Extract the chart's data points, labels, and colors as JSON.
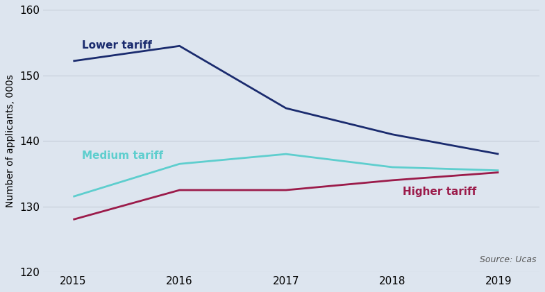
{
  "years": [
    2015,
    2016,
    2017,
    2018,
    2019
  ],
  "lower_tariff": [
    152.2,
    154.5,
    145.0,
    141.0,
    138.0
  ],
  "medium_tariff": [
    131.5,
    136.5,
    138.0,
    136.0,
    135.5
  ],
  "higher_tariff": [
    128.0,
    132.5,
    132.5,
    134.0,
    135.2
  ],
  "lower_color": "#1a2b6e",
  "medium_color": "#5ecece",
  "higher_color": "#9b1b4a",
  "background_color": "#dde5ef",
  "grid_color": "#c5cdd8",
  "ylabel": "Number of applicants, 000s",
  "ylim": [
    120,
    160
  ],
  "yticks": [
    120,
    130,
    140,
    150,
    160
  ],
  "source_text": "Source: Ucas",
  "label_lower": "Lower tariff",
  "label_medium": "Medium tariff",
  "label_higher": "Higher tariff",
  "linewidth": 2.0,
  "tick_fontsize": 11,
  "label_fontsize": 11,
  "ylabel_fontsize": 10
}
